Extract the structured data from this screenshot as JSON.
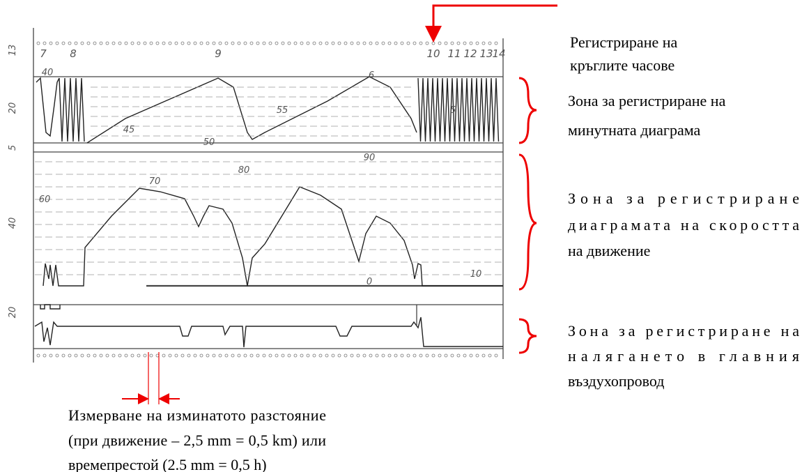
{
  "scan": {
    "left_scale_labels": [
      "13",
      "20",
      "5",
      "40",
      "20"
    ],
    "hour_labels": [
      "7",
      "8",
      "9",
      "10",
      "11",
      "12",
      "13",
      "14"
    ],
    "minute_labels": [
      "40",
      "45",
      "50",
      "55",
      "6",
      "5"
    ],
    "speed_labels": [
      "60",
      "70",
      "80",
      "90",
      "10",
      "0"
    ]
  },
  "annotations": {
    "hours": [
      "Регистриране  на",
      "кръглите часове"
    ],
    "minutes": [
      "Зона за регистриране на",
      "минутната диаграма"
    ],
    "speed": [
      "Зона   за   регистриране",
      "диаграмата на скоростта",
      "на движение"
    ],
    "pressure": [
      "Зона за регистриране на",
      "налягането   в   главния",
      "въздухопровод"
    ],
    "distance": [
      "Измерване на изминатото разстояние",
      "(при движение – 2,5 mm = 0,5 km) или",
      "времепрестой (2.5 mm = 0,5 h)"
    ]
  }
}
